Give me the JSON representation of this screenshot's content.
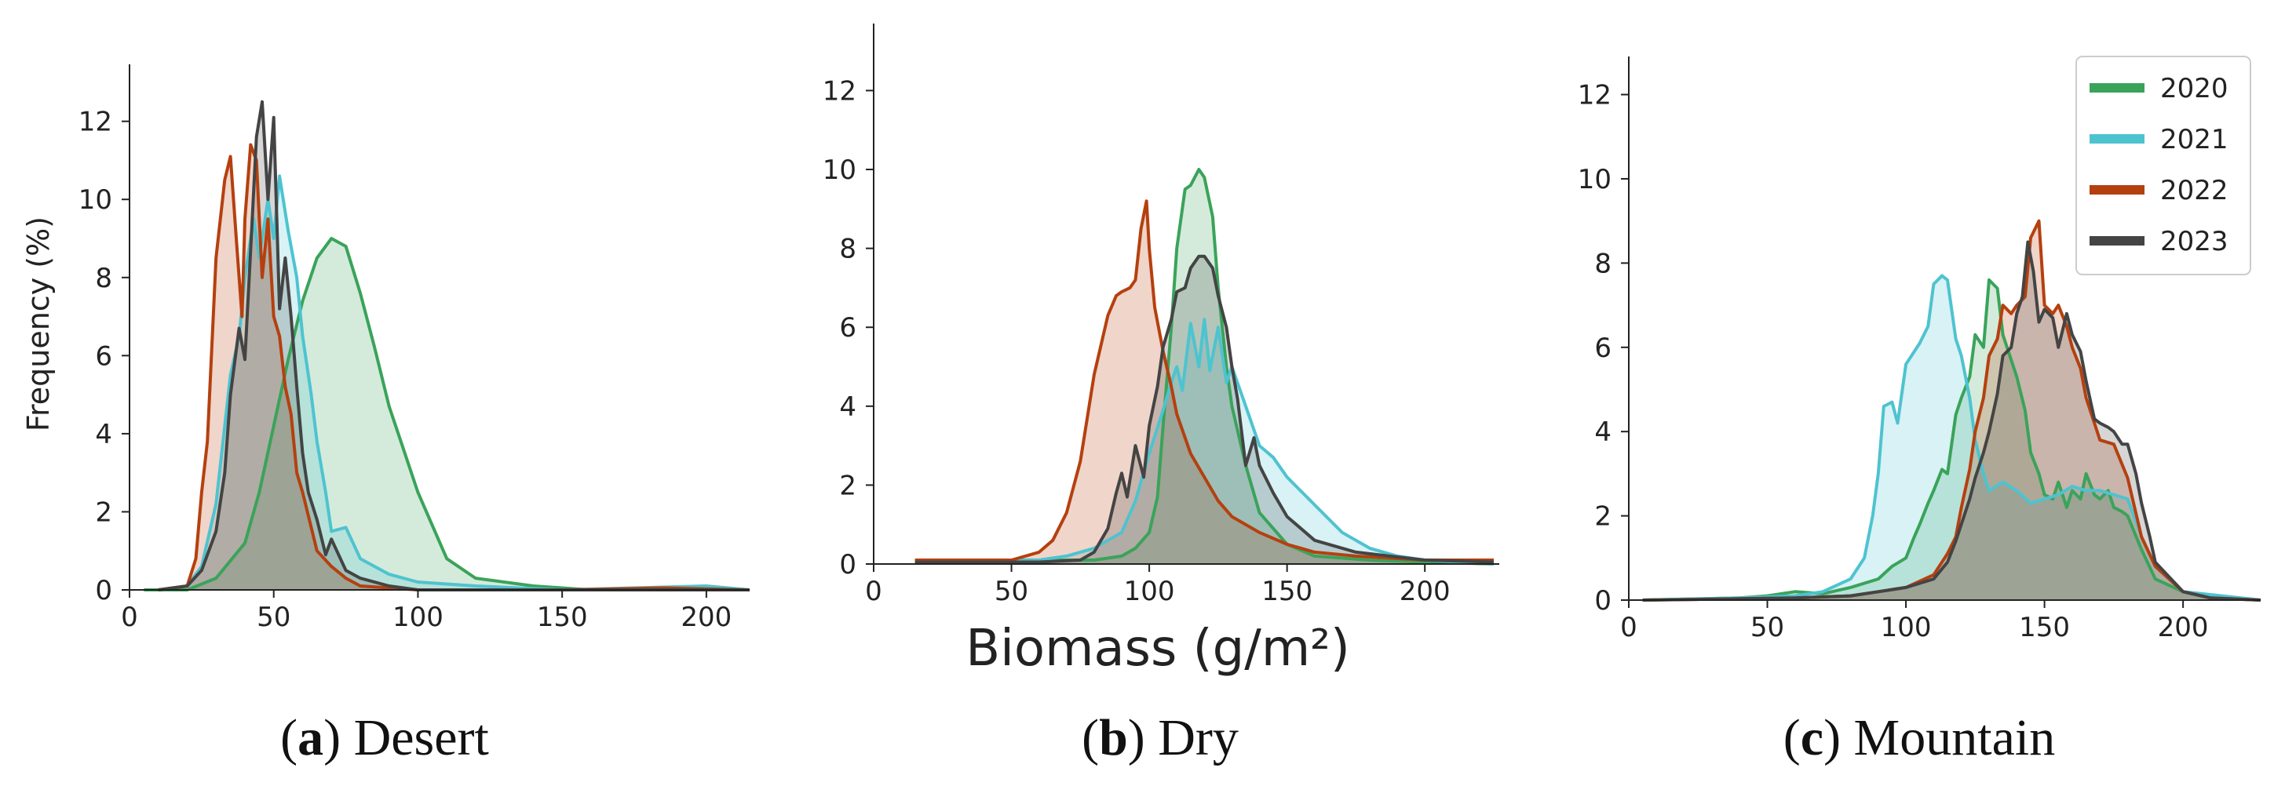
{
  "figure": {
    "ylabel": "Frequency (%)",
    "xlabel": "Biomass (g/m²)"
  },
  "legend": {
    "entries": [
      {
        "label": "2020",
        "color": "#3aa35a"
      },
      {
        "label": "2021",
        "color": "#4ec3d0"
      },
      {
        "label": "2022",
        "color": "#b5400f"
      },
      {
        "label": "2023",
        "color": "#444444"
      }
    ]
  },
  "chart_data": [
    {
      "type": "area",
      "panel": "a",
      "caption_letter": "a",
      "caption_text": ") Desert",
      "xlim": [
        0,
        215
      ],
      "ylim": [
        0,
        13.5
      ],
      "xticks": [
        0,
        50,
        100,
        150,
        200
      ],
      "yticks": [
        0,
        2,
        4,
        6,
        8,
        10,
        12
      ],
      "series": [
        {
          "name": "2020",
          "x": [
            5,
            20,
            30,
            40,
            45,
            50,
            55,
            60,
            65,
            70,
            75,
            80,
            85,
            90,
            100,
            110,
            120,
            140,
            160,
            200,
            215
          ],
          "y": [
            0,
            0,
            0.3,
            1.2,
            2.5,
            4.2,
            5.9,
            7.4,
            8.5,
            9.0,
            8.8,
            7.6,
            6.2,
            4.7,
            2.5,
            0.8,
            0.3,
            0.1,
            0,
            0,
            0
          ]
        },
        {
          "name": "2021",
          "x": [
            10,
            20,
            25,
            30,
            35,
            38,
            40,
            43,
            45,
            48,
            50,
            52,
            55,
            58,
            60,
            63,
            65,
            68,
            70,
            75,
            80,
            90,
            100,
            120,
            150,
            200,
            215
          ],
          "y": [
            0,
            0.1,
            0.6,
            2.2,
            5.5,
            6.5,
            8.0,
            9.5,
            8.5,
            10.0,
            9.0,
            10.6,
            9.2,
            8.0,
            6.5,
            5.0,
            3.8,
            2.5,
            1.5,
            1.6,
            0.8,
            0.4,
            0.2,
            0.1,
            0,
            0.1,
            0
          ]
        },
        {
          "name": "2022",
          "x": [
            10,
            20,
            23,
            25,
            27,
            30,
            33,
            35,
            37,
            39,
            40,
            42,
            44,
            46,
            48,
            50,
            52,
            54,
            56,
            58,
            60,
            63,
            65,
            70,
            75,
            80,
            90,
            100,
            150,
            185,
            215
          ],
          "y": [
            0,
            0.1,
            0.8,
            2.5,
            3.8,
            8.5,
            10.5,
            11.1,
            9.0,
            7.0,
            9.5,
            11.4,
            11.0,
            8.0,
            9.5,
            7.0,
            6.5,
            5.2,
            4.5,
            3.0,
            2.5,
            1.6,
            1.0,
            0.6,
            0.3,
            0.1,
            0.05,
            0,
            0,
            0.05,
            0
          ]
        },
        {
          "name": "2023",
          "x": [
            10,
            20,
            25,
            30,
            33,
            35,
            38,
            40,
            42,
            44,
            46,
            48,
            50,
            52,
            54,
            56,
            58,
            60,
            62,
            65,
            68,
            70,
            75,
            80,
            90,
            100,
            215
          ],
          "y": [
            0,
            0.1,
            0.5,
            1.5,
            3.0,
            5.0,
            6.7,
            5.9,
            8.7,
            11.6,
            12.5,
            10.0,
            12.1,
            7.2,
            8.5,
            7.0,
            5.2,
            3.5,
            2.5,
            1.8,
            0.9,
            1.3,
            0.5,
            0.3,
            0.1,
            0,
            0
          ]
        }
      ]
    },
    {
      "type": "area",
      "panel": "b",
      "caption_letter": "b",
      "caption_text": ") Dry",
      "xlim": [
        0,
        227
      ],
      "ylim": [
        0,
        13.5
      ],
      "xticks": [
        0,
        50,
        100,
        150,
        200
      ],
      "yticks": [
        0,
        2,
        4,
        6,
        8,
        10,
        12
      ],
      "series": [
        {
          "name": "2020",
          "x": [
            15,
            60,
            80,
            90,
            95,
            100,
            103,
            105,
            108,
            110,
            113,
            115,
            118,
            120,
            123,
            125,
            128,
            130,
            135,
            140,
            150,
            160,
            180,
            200,
            225
          ],
          "y": [
            0.1,
            0.1,
            0.1,
            0.2,
            0.4,
            0.8,
            1.7,
            3.5,
            6.0,
            8.0,
            9.5,
            9.6,
            10.0,
            9.8,
            8.8,
            7.0,
            5.0,
            4.0,
            2.5,
            1.3,
            0.5,
            0.2,
            0.1,
            0.05,
            0
          ]
        },
        {
          "name": "2021",
          "x": [
            15,
            60,
            70,
            80,
            90,
            95,
            100,
            105,
            108,
            110,
            112,
            115,
            118,
            120,
            122,
            125,
            128,
            130,
            135,
            140,
            145,
            150,
            160,
            170,
            180,
            190,
            200,
            225
          ],
          "y": [
            0.05,
            0.1,
            0.2,
            0.4,
            0.8,
            1.6,
            2.8,
            3.9,
            4.6,
            5.0,
            4.4,
            6.1,
            5.0,
            6.2,
            4.9,
            6.0,
            4.6,
            5.0,
            4.0,
            3.0,
            2.7,
            2.2,
            1.5,
            0.8,
            0.4,
            0.2,
            0.1,
            0
          ]
        },
        {
          "name": "2022",
          "x": [
            15,
            50,
            60,
            65,
            70,
            75,
            80,
            85,
            88,
            90,
            93,
            95,
            97,
            99,
            100,
            102,
            105,
            108,
            110,
            115,
            120,
            125,
            130,
            140,
            150,
            160,
            175,
            200,
            225
          ],
          "y": [
            0.1,
            0.1,
            0.3,
            0.6,
            1.3,
            2.6,
            4.8,
            6.3,
            6.8,
            6.9,
            7.0,
            7.2,
            8.5,
            9.2,
            8.0,
            6.5,
            5.4,
            4.5,
            3.8,
            2.8,
            2.2,
            1.6,
            1.2,
            0.8,
            0.5,
            0.3,
            0.2,
            0.1,
            0.1
          ]
        },
        {
          "name": "2023",
          "x": [
            15,
            60,
            75,
            80,
            85,
            88,
            90,
            92,
            95,
            98,
            100,
            103,
            105,
            108,
            110,
            113,
            115,
            118,
            120,
            123,
            125,
            128,
            130,
            132,
            135,
            138,
            140,
            145,
            150,
            160,
            175,
            200,
            225
          ],
          "y": [
            0.05,
            0.05,
            0.1,
            0.3,
            0.9,
            1.8,
            2.3,
            1.7,
            3.0,
            2.2,
            3.5,
            4.5,
            5.5,
            6.2,
            6.9,
            7.0,
            7.5,
            7.8,
            7.8,
            7.5,
            6.8,
            6.0,
            5.0,
            4.2,
            2.5,
            3.2,
            2.5,
            1.8,
            1.2,
            0.6,
            0.3,
            0.1,
            0.05
          ]
        }
      ]
    },
    {
      "type": "area",
      "panel": "c",
      "caption_letter": "c",
      "caption_text": ") Mountain",
      "xlim": [
        0,
        228
      ],
      "ylim": [
        0,
        13.5
      ],
      "xticks": [
        0,
        50,
        100,
        150,
        200
      ],
      "yticks": [
        0,
        2,
        4,
        6,
        8,
        10,
        12
      ],
      "series": [
        {
          "name": "2020",
          "x": [
            5,
            40,
            50,
            60,
            70,
            80,
            90,
            95,
            100,
            103,
            105,
            108,
            110,
            113,
            115,
            118,
            120,
            123,
            125,
            128,
            130,
            133,
            135,
            138,
            140,
            143,
            145,
            148,
            150,
            153,
            155,
            158,
            160,
            163,
            165,
            168,
            170,
            173,
            175,
            178,
            180,
            185,
            190,
            200,
            210,
            228
          ],
          "y": [
            0,
            0.05,
            0.1,
            0.2,
            0.15,
            0.3,
            0.5,
            0.8,
            1.0,
            1.5,
            1.8,
            2.3,
            2.6,
            3.1,
            3.0,
            4.4,
            4.8,
            5.3,
            6.3,
            6.0,
            7.6,
            7.4,
            6.3,
            5.7,
            5.3,
            4.5,
            3.5,
            3.0,
            2.5,
            2.4,
            2.8,
            2.2,
            2.6,
            2.4,
            3.0,
            2.5,
            2.4,
            2.6,
            2.2,
            2.1,
            2.0,
            1.2,
            0.5,
            0.2,
            0.05,
            0
          ]
        },
        {
          "name": "2021",
          "x": [
            5,
            40,
            60,
            70,
            80,
            85,
            88,
            90,
            92,
            95,
            97,
            100,
            103,
            105,
            108,
            110,
            113,
            115,
            118,
            120,
            123,
            125,
            128,
            130,
            135,
            140,
            145,
            150,
            155,
            160,
            165,
            170,
            175,
            180,
            185,
            190,
            200,
            228
          ],
          "y": [
            0,
            0.05,
            0.1,
            0.2,
            0.5,
            1.0,
            2.0,
            3.0,
            4.6,
            4.7,
            4.2,
            5.6,
            5.9,
            6.1,
            6.5,
            7.5,
            7.7,
            7.6,
            6.2,
            5.8,
            4.8,
            3.8,
            3.0,
            2.6,
            2.8,
            2.6,
            2.3,
            2.4,
            2.5,
            2.7,
            2.6,
            2.6,
            2.5,
            2.4,
            1.5,
            0.8,
            0.2,
            0
          ]
        },
        {
          "name": "2022",
          "x": [
            5,
            60,
            80,
            90,
            100,
            110,
            115,
            118,
            120,
            123,
            125,
            128,
            130,
            133,
            135,
            138,
            140,
            143,
            145,
            148,
            150,
            153,
            155,
            158,
            160,
            163,
            165,
            168,
            170,
            175,
            180,
            185,
            190,
            200,
            210,
            228
          ],
          "y": [
            0,
            0.05,
            0.1,
            0.2,
            0.3,
            0.6,
            1.1,
            1.5,
            2.2,
            3.1,
            4.0,
            4.8,
            5.8,
            6.2,
            7.0,
            6.8,
            7.0,
            7.2,
            8.6,
            9.0,
            7.0,
            6.8,
            7.0,
            6.5,
            6.0,
            5.5,
            4.8,
            4.2,
            3.8,
            3.7,
            2.9,
            1.5,
            0.8,
            0.2,
            0.05,
            0
          ]
        },
        {
          "name": "2023",
          "x": [
            5,
            60,
            80,
            90,
            100,
            110,
            115,
            118,
            120,
            123,
            125,
            128,
            130,
            133,
            135,
            138,
            140,
            142,
            144,
            146,
            148,
            150,
            153,
            155,
            158,
            160,
            163,
            165,
            168,
            170,
            173,
            175,
            178,
            180,
            183,
            185,
            188,
            190,
            200,
            210,
            228
          ],
          "y": [
            0,
            0.05,
            0.1,
            0.2,
            0.3,
            0.5,
            0.9,
            1.4,
            1.8,
            2.4,
            2.9,
            3.5,
            4.0,
            4.9,
            5.8,
            6.0,
            6.8,
            7.2,
            8.5,
            7.8,
            6.6,
            6.9,
            6.7,
            6.0,
            6.8,
            6.3,
            5.9,
            5.2,
            4.3,
            4.2,
            4.1,
            4.0,
            3.7,
            3.7,
            3.0,
            2.3,
            1.5,
            0.9,
            0.2,
            0.05,
            0
          ]
        }
      ]
    }
  ]
}
